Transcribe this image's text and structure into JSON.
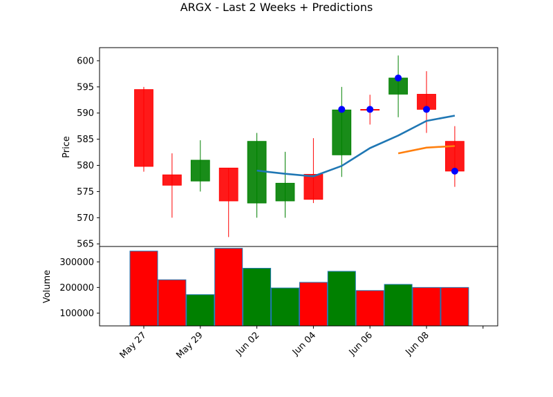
{
  "chart_data": {
    "type": "candlestick",
    "title": "ARGX - Last 2 Weeks + Predictions",
    "x_tick_labels": [
      "May 27",
      "May 29",
      "Jun 02",
      "Jun 04",
      "Jun 06",
      "Jun 08"
    ],
    "price_panel": {
      "ylabel": "Price",
      "ylim": [
        564.5,
        602.5
      ],
      "yticks": [
        565,
        570,
        575,
        580,
        585,
        590,
        595,
        600
      ],
      "candles": [
        {
          "open": 594.5,
          "high": 595.0,
          "low": 578.8,
          "close": 579.8,
          "color": "#ff0000"
        },
        {
          "open": 578.2,
          "high": 582.3,
          "low": 570.0,
          "close": 576.2,
          "color": "#ff0000"
        },
        {
          "open": 577.0,
          "high": 584.8,
          "low": 575.0,
          "close": 581.0,
          "color": "#008000"
        },
        {
          "open": 579.5,
          "high": 579.5,
          "low": 566.3,
          "close": 573.2,
          "color": "#ff0000"
        },
        {
          "open": 572.8,
          "high": 586.2,
          "low": 570.0,
          "close": 584.6,
          "color": "#008000"
        },
        {
          "open": 573.2,
          "high": 582.6,
          "low": 570.0,
          "close": 576.6,
          "color": "#008000"
        },
        {
          "open": 578.3,
          "high": 585.2,
          "low": 572.8,
          "close": 573.5,
          "color": "#ff0000"
        },
        {
          "open": 582.0,
          "high": 595.0,
          "low": 577.8,
          "close": 590.6,
          "color": "#008000"
        },
        {
          "open": 590.7,
          "high": 593.5,
          "low": 587.8,
          "close": 590.6,
          "color": "#ff0000"
        },
        {
          "open": 593.6,
          "high": 601.0,
          "low": 589.2,
          "close": 596.7,
          "color": "#008000"
        },
        {
          "open": 593.6,
          "high": 598.0,
          "low": 586.2,
          "close": 590.7,
          "color": "#ff0000"
        },
        {
          "open": 584.6,
          "high": 587.5,
          "low": 575.9,
          "close": 578.9,
          "color": "#ff0000"
        }
      ],
      "series": [
        {
          "color": "#1f77b4",
          "x": [
            4,
            5,
            6,
            7,
            8,
            9,
            10,
            11
          ],
          "values": [
            579.0,
            578.4,
            577.9,
            579.9,
            583.3,
            585.7,
            588.5,
            589.5
          ]
        },
        {
          "color": "#ff7f0e",
          "x": [
            9,
            10,
            11
          ],
          "values": [
            582.3,
            583.4,
            583.7
          ]
        }
      ],
      "markers": {
        "color": "#0000ff",
        "x": [
          7,
          8,
          9,
          10,
          11
        ],
        "values": [
          590.7,
          590.7,
          596.7,
          590.7,
          578.9
        ]
      }
    },
    "volume_panel": {
      "ylabel": "Volume",
      "ylim": [
        50000,
        360000
      ],
      "yticks": [
        100000,
        200000,
        300000
      ],
      "ytick_labels": [
        "100000",
        "200000",
        "300000"
      ],
      "bars": [
        {
          "value": 342000,
          "color": "#ff0000"
        },
        {
          "value": 230000,
          "color": "#ff0000"
        },
        {
          "value": 172000,
          "color": "#008000"
        },
        {
          "value": 353000,
          "color": "#ff0000"
        },
        {
          "value": 275000,
          "color": "#008000"
        },
        {
          "value": 198000,
          "color": "#008000"
        },
        {
          "value": 220000,
          "color": "#ff0000"
        },
        {
          "value": 263000,
          "color": "#008000"
        },
        {
          "value": 188000,
          "color": "#ff0000"
        },
        {
          "value": 212000,
          "color": "#008000"
        },
        {
          "value": 200000,
          "color": "#ff0000"
        },
        {
          "value": 200000,
          "color": "#ff0000"
        }
      ]
    }
  }
}
